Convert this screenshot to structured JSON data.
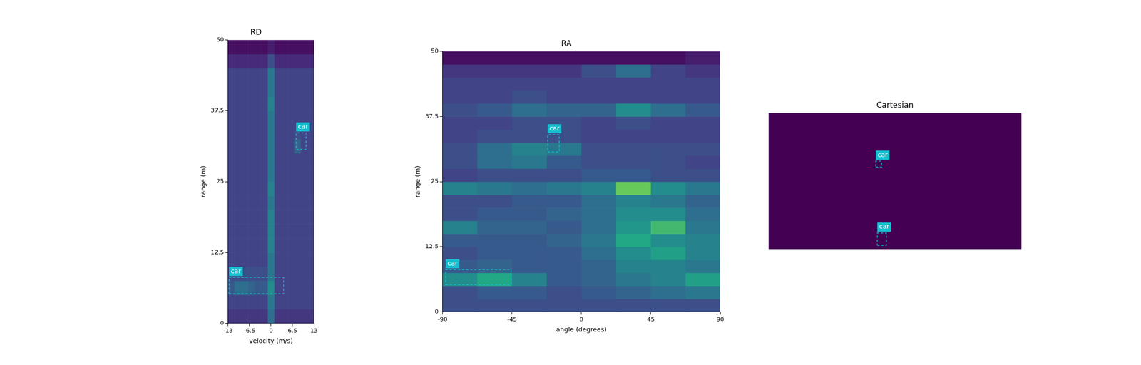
{
  "chart_data": [
    {
      "type": "heatmap",
      "title": "RD",
      "x_label": "velocity (m/s)",
      "y_label": "range (m)",
      "xlim": [
        -13,
        13
      ],
      "ylim": [
        0,
        50
      ],
      "xticks": [
        -13,
        -6.5,
        0,
        6.5,
        13
      ],
      "yticks": [
        0,
        12.5,
        25,
        37.5,
        50
      ],
      "color": "#17becf",
      "heatmap": {
        "zlim": [
          0,
          1
        ],
        "x_edges": [
          -13,
          -11,
          -9,
          -7,
          -5,
          -3,
          -1,
          1,
          3,
          5,
          7,
          9,
          11,
          13
        ],
        "y_edges": [
          0,
          2.5,
          5,
          7.5,
          10,
          12.5,
          15,
          17.5,
          20,
          22.5,
          25,
          27.5,
          30,
          32.5,
          35,
          37.5,
          40,
          42.5,
          45,
          47.5,
          50
        ],
        "z": [
          [
            0.2,
            0.2,
            0.2,
            0.2,
            0.2,
            0.2,
            0.45,
            0.2,
            0.2,
            0.2,
            0.2,
            0.2,
            0.2
          ],
          [
            0.25,
            0.25,
            0.25,
            0.25,
            0.25,
            0.25,
            0.5,
            0.25,
            0.25,
            0.25,
            0.25,
            0.25,
            0.25
          ],
          [
            0.35,
            0.45,
            0.45,
            0.4,
            0.35,
            0.35,
            0.6,
            0.25,
            0.25,
            0.25,
            0.25,
            0.25,
            0.25
          ],
          [
            0.3,
            0.3,
            0.3,
            0.3,
            0.3,
            0.3,
            0.5,
            0.25,
            0.25,
            0.25,
            0.25,
            0.25,
            0.25
          ],
          [
            0.25,
            0.25,
            0.25,
            0.25,
            0.25,
            0.25,
            0.5,
            0.25,
            0.25,
            0.25,
            0.25,
            0.25,
            0.25
          ],
          [
            0.25,
            0.25,
            0.25,
            0.25,
            0.25,
            0.25,
            0.55,
            0.25,
            0.25,
            0.25,
            0.25,
            0.25,
            0.25
          ],
          [
            0.25,
            0.25,
            0.25,
            0.25,
            0.25,
            0.25,
            0.55,
            0.25,
            0.25,
            0.25,
            0.25,
            0.25,
            0.25
          ],
          [
            0.25,
            0.25,
            0.25,
            0.25,
            0.25,
            0.25,
            0.55,
            0.25,
            0.25,
            0.25,
            0.25,
            0.25,
            0.25
          ],
          [
            0.25,
            0.25,
            0.25,
            0.25,
            0.25,
            0.25,
            0.5,
            0.25,
            0.25,
            0.25,
            0.25,
            0.25,
            0.25
          ],
          [
            0.25,
            0.25,
            0.25,
            0.25,
            0.25,
            0.25,
            0.55,
            0.25,
            0.25,
            0.25,
            0.25,
            0.25,
            0.25
          ],
          [
            0.25,
            0.25,
            0.25,
            0.25,
            0.25,
            0.25,
            0.5,
            0.25,
            0.25,
            0.25,
            0.25,
            0.25,
            0.25
          ],
          [
            0.25,
            0.25,
            0.25,
            0.25,
            0.25,
            0.25,
            0.5,
            0.25,
            0.25,
            0.25,
            0.25,
            0.25,
            0.25
          ],
          [
            0.25,
            0.25,
            0.25,
            0.25,
            0.25,
            0.25,
            0.5,
            0.25,
            0.25,
            0.25,
            0.4,
            0.25,
            0.25
          ],
          [
            0.25,
            0.25,
            0.25,
            0.25,
            0.25,
            0.25,
            0.5,
            0.25,
            0.25,
            0.25,
            0.3,
            0.25,
            0.25
          ],
          [
            0.25,
            0.25,
            0.25,
            0.25,
            0.25,
            0.25,
            0.5,
            0.25,
            0.25,
            0.25,
            0.25,
            0.25,
            0.25
          ],
          [
            0.25,
            0.25,
            0.25,
            0.25,
            0.25,
            0.25,
            0.55,
            0.25,
            0.25,
            0.25,
            0.25,
            0.25,
            0.25
          ],
          [
            0.25,
            0.25,
            0.25,
            0.25,
            0.25,
            0.25,
            0.5,
            0.25,
            0.25,
            0.25,
            0.25,
            0.25,
            0.25
          ],
          [
            0.25,
            0.25,
            0.25,
            0.25,
            0.25,
            0.25,
            0.5,
            0.25,
            0.25,
            0.25,
            0.25,
            0.25,
            0.25
          ],
          [
            0.15,
            0.15,
            0.15,
            0.15,
            0.15,
            0.15,
            0.3,
            0.15,
            0.15,
            0.15,
            0.15,
            0.15,
            0.15
          ],
          [
            0.05,
            0.05,
            0.05,
            0.05,
            0.05,
            0.05,
            0.1,
            0.05,
            0.05,
            0.05,
            0.05,
            0.05,
            0.05
          ]
        ]
      },
      "boxes": [
        {
          "label": "car",
          "x": [
            7.6,
            10.6
          ],
          "y": [
            30.7,
            33.6
          ]
        },
        {
          "label": "car",
          "x": [
            -12.7,
            3.8
          ],
          "y": [
            5.2,
            8.1
          ]
        }
      ]
    },
    {
      "type": "heatmap",
      "title": "RA",
      "x_label": "angle (degrees)",
      "y_label": "range (m)",
      "xlim": [
        -90,
        90
      ],
      "ylim": [
        0,
        50
      ],
      "xticks": [
        -90,
        -45,
        0,
        45,
        90
      ],
      "yticks": [
        0,
        12.5,
        25,
        37.5,
        50
      ],
      "color": "#17becf",
      "heatmap": {
        "zlim": [
          0,
          1
        ],
        "x_edges": [
          -90,
          -67.5,
          -45,
          -22.5,
          0,
          22.5,
          45,
          67.5,
          90
        ],
        "y_edges": [
          0,
          2.5,
          5,
          7.5,
          10,
          12.5,
          15,
          17.5,
          20,
          22.5,
          25,
          27.5,
          30,
          32.5,
          35,
          37.5,
          40,
          42.5,
          45,
          47.5,
          50
        ],
        "z": [
          [
            0.3,
            0.3,
            0.3,
            0.3,
            0.3,
            0.3,
            0.3,
            0.3
          ],
          [
            0.3,
            0.35,
            0.35,
            0.3,
            0.35,
            0.4,
            0.45,
            0.5
          ],
          [
            0.6,
            0.75,
            0.55,
            0.35,
            0.4,
            0.5,
            0.55,
            0.7
          ],
          [
            0.35,
            0.4,
            0.35,
            0.35,
            0.4,
            0.55,
            0.55,
            0.5
          ],
          [
            0.3,
            0.35,
            0.35,
            0.35,
            0.45,
            0.6,
            0.7,
            0.55
          ],
          [
            0.35,
            0.35,
            0.35,
            0.4,
            0.5,
            0.75,
            0.6,
            0.55
          ],
          [
            0.55,
            0.4,
            0.4,
            0.35,
            0.45,
            0.65,
            0.8,
            0.5
          ],
          [
            0.3,
            0.35,
            0.35,
            0.4,
            0.45,
            0.6,
            0.6,
            0.45
          ],
          [
            0.3,
            0.3,
            0.35,
            0.35,
            0.45,
            0.55,
            0.5,
            0.4
          ],
          [
            0.55,
            0.5,
            0.45,
            0.5,
            0.55,
            0.85,
            0.6,
            0.5
          ],
          [
            0.25,
            0.3,
            0.3,
            0.3,
            0.35,
            0.35,
            0.3,
            0.3
          ],
          [
            0.3,
            0.45,
            0.5,
            0.35,
            0.3,
            0.3,
            0.3,
            0.25
          ],
          [
            0.3,
            0.45,
            0.55,
            0.5,
            0.3,
            0.3,
            0.3,
            0.3
          ],
          [
            0.25,
            0.3,
            0.3,
            0.3,
            0.25,
            0.25,
            0.25,
            0.25
          ],
          [
            0.25,
            0.25,
            0.3,
            0.3,
            0.25,
            0.3,
            0.25,
            0.25
          ],
          [
            0.3,
            0.35,
            0.45,
            0.4,
            0.4,
            0.6,
            0.45,
            0.35
          ],
          [
            0.25,
            0.25,
            0.3,
            0.25,
            0.25,
            0.25,
            0.25,
            0.25
          ],
          [
            0.25,
            0.25,
            0.25,
            0.25,
            0.25,
            0.25,
            0.25,
            0.25
          ],
          [
            0.2,
            0.2,
            0.2,
            0.2,
            0.3,
            0.45,
            0.25,
            0.2
          ],
          [
            0.05,
            0.05,
            0.05,
            0.05,
            0.05,
            0.05,
            0.05,
            0.1
          ]
        ]
      },
      "boxes": [
        {
          "label": "car",
          "x": [
            -21.9,
            -14.4
          ],
          "y": [
            30.7,
            34.0
          ]
        },
        {
          "label": "car",
          "x": [
            -88.0,
            -45.6
          ],
          "y": [
            5.2,
            8.1
          ]
        }
      ]
    },
    {
      "type": "heatmap",
      "title": "Cartesian",
      "tick_labels": false,
      "xlim": [
        -50,
        50
      ],
      "ylim": [
        0,
        50
      ],
      "color": "#17becf",
      "heatmap": {
        "zlim": [
          0,
          1
        ],
        "x_edges": [
          -50,
          50
        ],
        "y_edges": [
          0,
          50
        ],
        "z": [
          [
            0
          ]
        ]
      },
      "boxes": [
        {
          "label": "car",
          "x": [
            -7.6,
            -5.3
          ],
          "y": [
            30.1,
            32.3
          ]
        },
        {
          "label": "car",
          "x": [
            -7.0,
            -3.4
          ],
          "y": [
            1.4,
            5.9
          ]
        }
      ]
    }
  ]
}
